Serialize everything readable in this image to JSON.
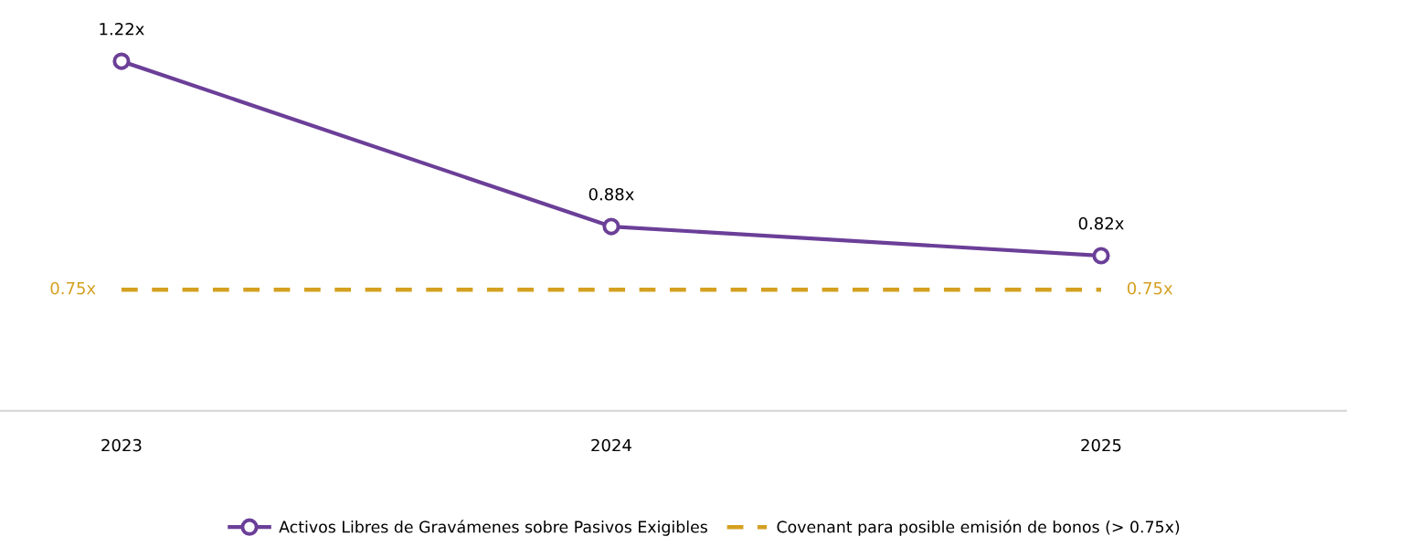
{
  "chart_data": {
    "type": "line",
    "categories": [
      "2023",
      "2024",
      "2025"
    ],
    "grid": false,
    "legend": "bottom",
    "tick_labels": "x",
    "series": [
      {
        "name": "Activos Libres de Gravámenes sobre Pasivos Exigibles",
        "color": "#6b3f98",
        "values": [
          1.22,
          0.88,
          0.82
        ],
        "marker": "circle",
        "line_style": "solid",
        "value_labels": [
          "1.22x",
          "0.88x",
          "0.82x"
        ]
      },
      {
        "name": "Covenant para posible emisión de bonos (> 0.75x)",
        "color": "#d4a020",
        "values": [
          0.75,
          0.75,
          0.75
        ],
        "marker": "none",
        "line_style": "dashed",
        "value_labels": [
          "0.75x",
          null,
          "0.75x"
        ]
      }
    ]
  }
}
